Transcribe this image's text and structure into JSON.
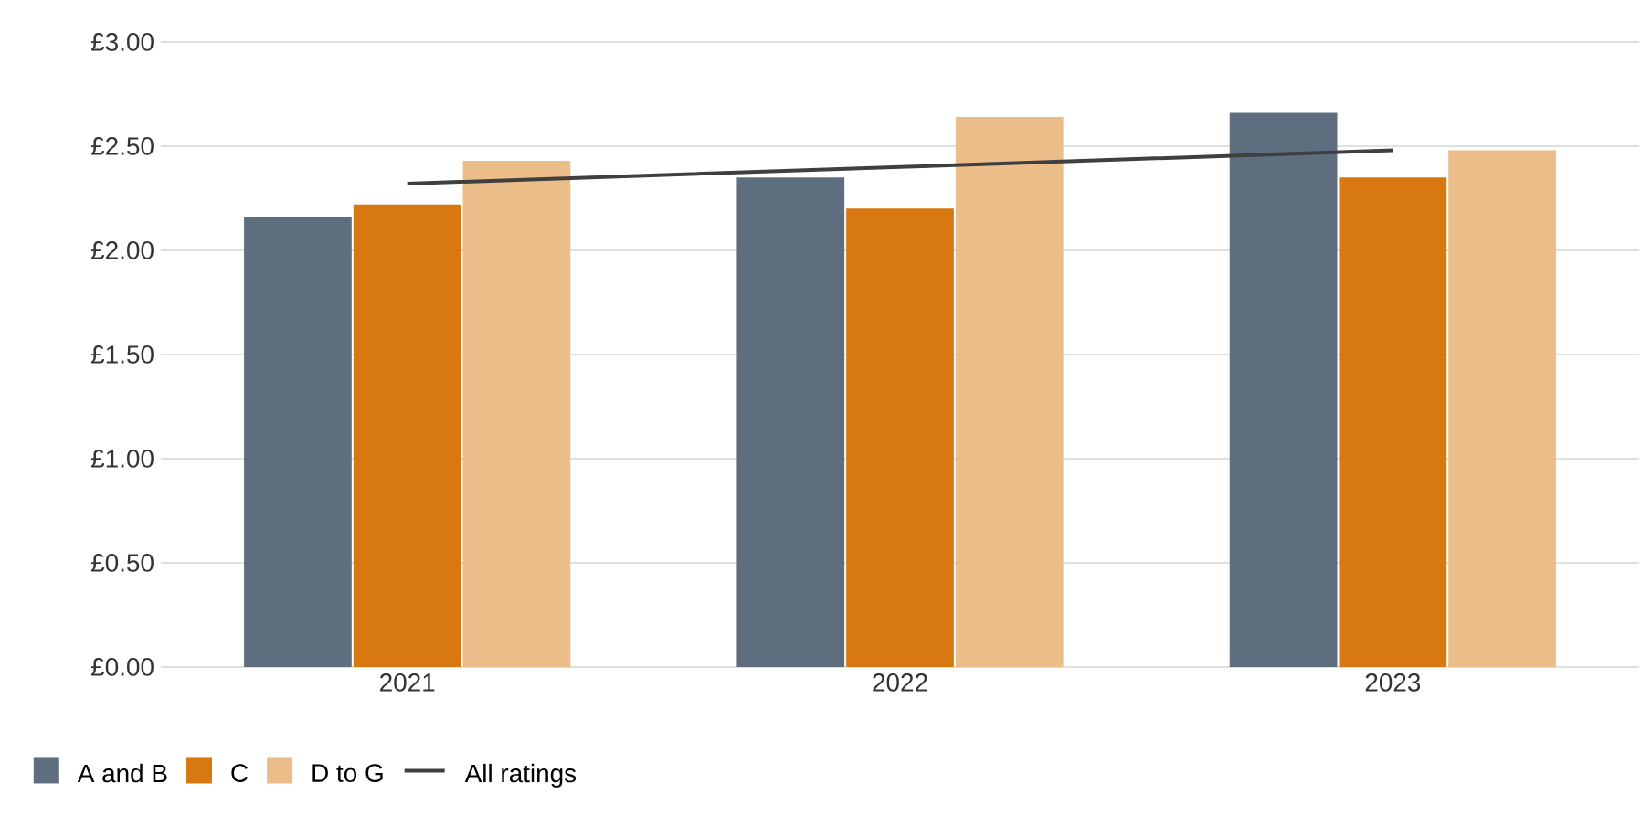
{
  "chart_data": {
    "type": "bar",
    "categories": [
      "2021",
      "2022",
      "2023"
    ],
    "series": [
      {
        "name": "A and B",
        "color": "#5f6e7f",
        "values": [
          2.16,
          2.35,
          2.66
        ]
      },
      {
        "name": "C",
        "color": "#d77811",
        "values": [
          2.22,
          2.2,
          2.35
        ]
      },
      {
        "name": "D to G",
        "color": "#ebbd89",
        "values": [
          2.43,
          2.64,
          2.48
        ]
      },
      {
        "name": "All ratings",
        "type": "line",
        "color": "#3f3f3f",
        "values": [
          2.32,
          2.4,
          2.48
        ]
      }
    ],
    "ylim": [
      0,
      3
    ],
    "yticks": [
      {
        "value": 0,
        "label": "£0.00"
      },
      {
        "value": 0.5,
        "label": "£0.50"
      },
      {
        "value": 1,
        "label": "£1.00"
      },
      {
        "value": 1.5,
        "label": "£1.50"
      },
      {
        "value": 2,
        "label": "£2.00"
      },
      {
        "value": 2.5,
        "label": "£2.50"
      },
      {
        "value": 3,
        "label": "£3.00"
      }
    ],
    "grid": "y",
    "legend": "bottom left"
  }
}
